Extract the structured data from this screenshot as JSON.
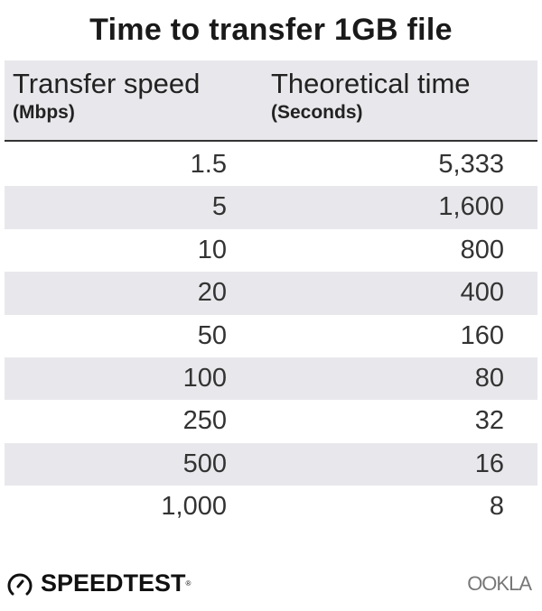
{
  "chart_data": {
    "type": "table",
    "title": "Time to transfer 1GB file",
    "columns": [
      {
        "label": "Transfer speed",
        "unit": "(Mbps)"
      },
      {
        "label": "Theoretical time",
        "unit": "(Seconds)"
      }
    ],
    "rows": [
      [
        "1.5",
        "5,333"
      ],
      [
        "5",
        "1,600"
      ],
      [
        "10",
        "800"
      ],
      [
        "20",
        "400"
      ],
      [
        "50",
        "160"
      ],
      [
        "100",
        "80"
      ],
      [
        "250",
        "32"
      ],
      [
        "500",
        "16"
      ],
      [
        "1,000",
        "8"
      ]
    ]
  },
  "footer": {
    "brand": "SPEEDTEST",
    "brand_mark": "®",
    "partner": "OOKLA"
  },
  "colors": {
    "stripe": "#e8e8ec",
    "text": "#1a1a1a"
  }
}
